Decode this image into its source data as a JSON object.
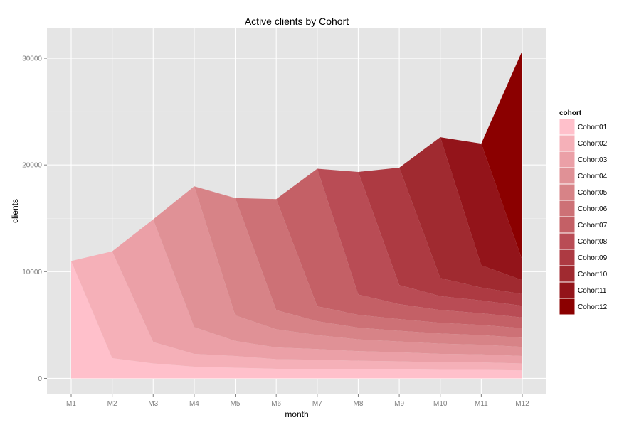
{
  "chart_data": {
    "type": "area",
    "stacked": true,
    "title": "Active clients by Cohort",
    "xlabel": "month",
    "ylabel": "clients",
    "categories": [
      "M1",
      "M2",
      "M3",
      "M4",
      "M5",
      "M6",
      "M7",
      "M8",
      "M9",
      "M10",
      "M11",
      "M12"
    ],
    "ylim": [
      -1500,
      32800
    ],
    "yticks": [
      0,
      10000,
      20000,
      30000
    ],
    "ytick_labels": [
      "0",
      "10000",
      "20000",
      "30000"
    ],
    "grid": true,
    "legend": {
      "title": "cohort",
      "placement": "right"
    },
    "series": [
      {
        "name": "Cohort01",
        "color": "#ffc0cb",
        "values": [
          11000,
          1900,
          1400,
          1100,
          1000,
          900,
          900,
          850,
          850,
          800,
          800,
          750
        ]
      },
      {
        "name": "Cohort02",
        "color": "#f5b0b8",
        "values": [
          0,
          10000,
          2000,
          1200,
          1100,
          900,
          850,
          800,
          750,
          700,
          700,
          650
        ]
      },
      {
        "name": "Cohort03",
        "color": "#eba0a7",
        "values": [
          0,
          0,
          11500,
          2500,
          1400,
          1100,
          1000,
          900,
          850,
          800,
          750,
          700
        ]
      },
      {
        "name": "Cohort04",
        "color": "#e09196",
        "values": [
          0,
          0,
          0,
          13200,
          2400,
          1700,
          1300,
          1100,
          1000,
          950,
          900,
          850
        ]
      },
      {
        "name": "Cohort05",
        "color": "#d78387",
        "values": [
          0,
          0,
          0,
          0,
          11000,
          1800,
          1300,
          1100,
          1000,
          950,
          900,
          850
        ]
      },
      {
        "name": "Cohort06",
        "color": "#cd7176",
        "values": [
          0,
          0,
          0,
          0,
          0,
          10400,
          1400,
          1200,
          1100,
          1000,
          950,
          900
        ]
      },
      {
        "name": "Cohort07",
        "color": "#c46066",
        "values": [
          0,
          0,
          0,
          0,
          0,
          0,
          12900,
          1900,
          1400,
          1200,
          1100,
          1000
        ]
      },
      {
        "name": "Cohort08",
        "color": "#b94c55",
        "values": [
          0,
          0,
          0,
          0,
          0,
          0,
          0,
          11500,
          1800,
          1300,
          1200,
          1100
        ]
      },
      {
        "name": "Cohort09",
        "color": "#ad3a42",
        "values": [
          0,
          0,
          0,
          0,
          0,
          0,
          0,
          0,
          11000,
          1700,
          1200,
          1100
        ]
      },
      {
        "name": "Cohort10",
        "color": "#a02a30",
        "values": [
          0,
          0,
          0,
          0,
          0,
          0,
          0,
          0,
          0,
          13200,
          2100,
          1300
        ]
      },
      {
        "name": "Cohort11",
        "color": "#93141a",
        "values": [
          0,
          0,
          0,
          0,
          0,
          0,
          0,
          0,
          0,
          0,
          11400,
          1900
        ]
      },
      {
        "name": "Cohort12",
        "color": "#8b0000",
        "values": [
          0,
          0,
          0,
          0,
          0,
          0,
          0,
          0,
          0,
          0,
          0,
          19600
        ]
      }
    ]
  },
  "colors": {
    "panel_bg": "#e5e5e5",
    "grid_major": "#ffffff",
    "grid_minor": "#f2f2f2"
  }
}
